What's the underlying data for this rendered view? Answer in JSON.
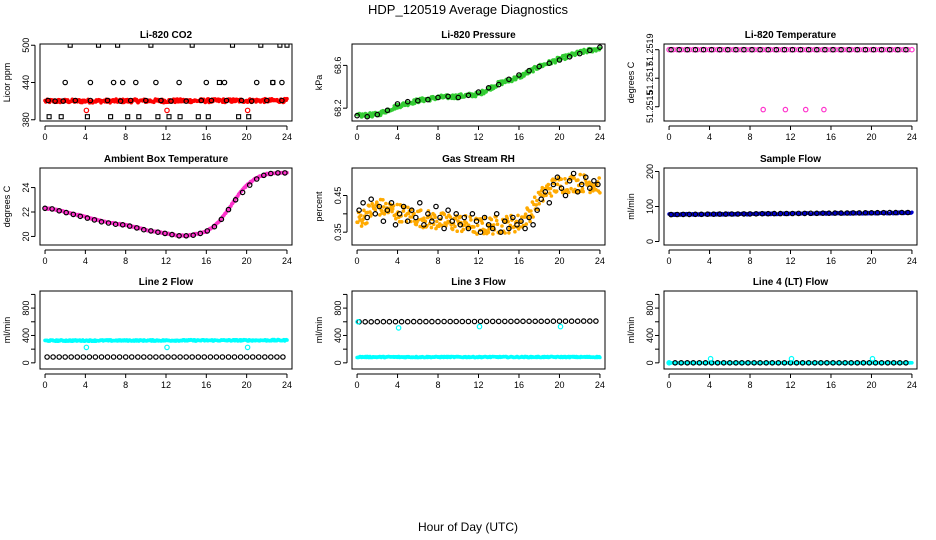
{
  "figure": {
    "title": "HDP_120519  Average Diagnostics",
    "xlabel": "Hour of Day (UTC)"
  },
  "chart_data": [
    {
      "type": "scatter",
      "title": "Li-820 CO2",
      "ylabel": "Licor ppm",
      "xlim": [
        -0.5,
        24.5
      ],
      "ylim": [
        378,
        502
      ],
      "xticks": [
        0,
        4,
        8,
        12,
        16,
        20,
        24
      ],
      "yticks": [
        380,
        440,
        500
      ],
      "series": [
        {
          "color": "#ff0000",
          "marker": "dense",
          "x_range": [
            0,
            24
          ],
          "y_start": 410,
          "y_end": 411,
          "noise": 3
        },
        {
          "color": "#000000",
          "marker": "open-circle",
          "x": [
            0.3,
            1,
            1.8,
            3,
            4.5,
            6.2,
            7.5,
            8.5,
            10,
            11.5,
            12.5,
            14,
            15.5,
            16.5,
            18,
            19.5,
            20.5,
            22,
            23.5
          ],
          "y": [
            411,
            410,
            410,
            411,
            411,
            411,
            410,
            411,
            411,
            411,
            410,
            410,
            411,
            411,
            411,
            411,
            410,
            411,
            411
          ]
        },
        {
          "color": "#000000",
          "marker": "open-square",
          "x": [
            0.4,
            1.6,
            2.5,
            4.2,
            5.3,
            6.5,
            7.2,
            8.2,
            9.3,
            10.5,
            11.2,
            12.3,
            13.4,
            14.6,
            15.2,
            16.2,
            17.3,
            18.6,
            19.2,
            20.2,
            21.4,
            22.6,
            23.3,
            24
          ],
          "y": [
            385,
            385,
            500,
            385,
            500,
            385,
            500,
            385,
            385,
            500,
            385,
            385,
            385,
            500,
            385,
            385,
            440,
            500,
            385,
            385,
            500,
            440,
            500,
            500
          ]
        },
        {
          "color": "#000000",
          "marker": "open-circle",
          "x": [
            2,
            4.5,
            6.8,
            7.7,
            9,
            11,
            13.3,
            16,
            17.8,
            21,
            22.6,
            23.5
          ],
          "y": [
            440,
            440,
            440,
            440,
            440,
            440,
            440,
            440,
            440,
            440,
            440,
            440
          ]
        },
        {
          "color": "#ff0000",
          "marker": "open-circle",
          "x": [
            4.1,
            12.1,
            20.1
          ],
          "y": [
            395,
            395,
            395
          ]
        }
      ]
    },
    {
      "type": "scatter",
      "title": "Li-820 Pressure",
      "ylabel": "kPa",
      "xlim": [
        -0.5,
        24.5
      ],
      "ylim": [
        68.08,
        68.8
      ],
      "xticks": [
        0,
        4,
        8,
        12,
        16,
        20,
        24
      ],
      "yticks": [
        68.2,
        68.6
      ],
      "series": [
        {
          "color": "#33cc33",
          "marker": "dense",
          "x": [
            0,
            2,
            4,
            6,
            8,
            10,
            12,
            14,
            16,
            18,
            20,
            22,
            24
          ],
          "y": [
            68.13,
            68.14,
            68.22,
            68.27,
            68.3,
            68.31,
            68.33,
            68.43,
            68.49,
            68.59,
            68.66,
            68.72,
            68.76
          ],
          "noise": 0.02
        },
        {
          "color": "#000000",
          "marker": "open-circle",
          "x": [
            0,
            1,
            2,
            3,
            4,
            5,
            6,
            7,
            8,
            9,
            10,
            11,
            12,
            13,
            14,
            15,
            16,
            17,
            18,
            19,
            20,
            21,
            22,
            23,
            24
          ],
          "y": [
            68.13,
            68.12,
            68.14,
            68.18,
            68.24,
            68.26,
            68.27,
            68.28,
            68.3,
            68.31,
            68.3,
            68.32,
            68.35,
            68.39,
            68.42,
            68.47,
            68.51,
            68.55,
            68.59,
            68.62,
            68.65,
            68.68,
            68.71,
            68.74,
            68.77
          ]
        }
      ]
    },
    {
      "type": "scatter",
      "title": "Li-820 Temperature",
      "ylabel": "degrees C",
      "xlim": [
        -0.5,
        24.5
      ],
      "ylim": [
        51.2514,
        51.25194
      ],
      "xticks": [
        0,
        4,
        8,
        12,
        16,
        20,
        24
      ],
      "yticks": [
        51.2515,
        51.2517,
        51.2519
      ],
      "ytick_labels": [
        "51.2515",
        "51.2517",
        "51.2519"
      ],
      "series": [
        {
          "color": "#ff33cc",
          "marker": "open-circle",
          "x_range": [
            0,
            24
          ],
          "step": 0.4,
          "y": 51.2519
        },
        {
          "color": "#000000",
          "marker": "open-circle",
          "x_range": [
            0.2,
            23.8
          ],
          "step": 0.8,
          "y": 51.2519
        },
        {
          "color": "#ff33cc",
          "marker": "open-circle",
          "x": [
            9.3,
            11.5,
            13.5,
            15.3
          ],
          "y": [
            51.25148,
            51.25148,
            51.25148,
            51.25148
          ]
        }
      ]
    },
    {
      "type": "scatter",
      "title": "Ambient Box Temperature",
      "ylabel": "degrees C",
      "xlim": [
        -0.5,
        24.5
      ],
      "ylim": [
        19.3,
        25.6
      ],
      "xticks": [
        0,
        4,
        8,
        12,
        16,
        20,
        24
      ],
      "yticks": [
        20,
        22,
        24
      ],
      "series": [
        {
          "color": "#ff33cc",
          "marker": "dense",
          "x": [
            0,
            1,
            2,
            3,
            4,
            5,
            6,
            7,
            8,
            9,
            10,
            11,
            12,
            13,
            14,
            15,
            16,
            17,
            18,
            19,
            20,
            21,
            22,
            23,
            24
          ],
          "y": [
            22.3,
            22.2,
            22.0,
            21.8,
            21.6,
            21.4,
            21.2,
            21.05,
            20.95,
            20.75,
            20.55,
            20.4,
            20.25,
            20.1,
            20.05,
            20.2,
            20.4,
            21.0,
            22.0,
            23.2,
            24.2,
            24.8,
            25.1,
            25.2,
            25.2
          ],
          "noise": 0.05
        },
        {
          "color": "#000000",
          "marker": "open-circle",
          "x": [
            0,
            0.7,
            1.4,
            2.1,
            2.8,
            3.5,
            4.2,
            4.9,
            5.6,
            6.3,
            7.0,
            7.7,
            8.4,
            9.1,
            9.8,
            10.5,
            11.2,
            11.9,
            12.6,
            13.3,
            14.0,
            14.7,
            15.4,
            16.1,
            16.8,
            17.5,
            18.2,
            18.9,
            19.6,
            20.3,
            21.0,
            21.7,
            22.4,
            23.1,
            23.8
          ],
          "y": [
            22.3,
            22.25,
            22.1,
            21.95,
            21.8,
            21.65,
            21.5,
            21.35,
            21.2,
            21.1,
            21.0,
            20.95,
            20.85,
            20.7,
            20.55,
            20.45,
            20.35,
            20.25,
            20.15,
            20.05,
            20.05,
            20.1,
            20.25,
            20.45,
            20.8,
            21.4,
            22.2,
            23.0,
            23.6,
            24.2,
            24.7,
            25.0,
            25.15,
            25.2,
            25.2
          ]
        }
      ]
    },
    {
      "type": "scatter",
      "title": "Gas Stream RH",
      "ylabel": "percent",
      "xlim": [
        -0.5,
        24.5
      ],
      "ylim": [
        0.315,
        0.525
      ],
      "xticks": [
        0,
        4,
        8,
        12,
        16,
        20,
        24
      ],
      "yticks": [
        0.35,
        0.4,
        0.45
      ],
      "ytick_labels": [
        "0.35",
        "",
        "0.45"
      ],
      "series": [
        {
          "color": "#ffaa00",
          "marker": "dense",
          "x": [
            0,
            2,
            4,
            6,
            8,
            10,
            12,
            14,
            16,
            17,
            18,
            19,
            20,
            22,
            24
          ],
          "y": [
            0.38,
            0.42,
            0.405,
            0.39,
            0.38,
            0.375,
            0.365,
            0.37,
            0.375,
            0.4,
            0.44,
            0.47,
            0.48,
            0.485,
            0.48
          ],
          "noise": 0.025
        },
        {
          "color": "#000000",
          "marker": "open-circle",
          "x": [
            0.2,
            0.6,
            1,
            1.4,
            1.8,
            2.2,
            2.6,
            3,
            3.4,
            3.8,
            4.2,
            4.6,
            5,
            5.4,
            5.8,
            6.2,
            6.6,
            7,
            7.4,
            7.8,
            8.2,
            8.6,
            9,
            9.4,
            9.8,
            10.2,
            10.6,
            11,
            11.4,
            11.8,
            12.2,
            12.6,
            13,
            13.4,
            13.8,
            14.2,
            14.6,
            15,
            15.4,
            15.8,
            16.2,
            16.6,
            17,
            17.4,
            17.8,
            18.2,
            18.6,
            19,
            19.4,
            19.8,
            20.2,
            20.6,
            21,
            21.4,
            21.8,
            22.2,
            22.6,
            23,
            23.4,
            23.8
          ],
          "y": [
            0.41,
            0.43,
            0.39,
            0.44,
            0.4,
            0.42,
            0.38,
            0.41,
            0.43,
            0.37,
            0.4,
            0.42,
            0.38,
            0.41,
            0.39,
            0.43,
            0.37,
            0.4,
            0.38,
            0.42,
            0.39,
            0.36,
            0.41,
            0.38,
            0.4,
            0.37,
            0.39,
            0.36,
            0.4,
            0.38,
            0.35,
            0.39,
            0.37,
            0.36,
            0.4,
            0.35,
            0.38,
            0.36,
            0.39,
            0.37,
            0.38,
            0.36,
            0.39,
            0.37,
            0.41,
            0.44,
            0.46,
            0.43,
            0.48,
            0.5,
            0.47,
            0.45,
            0.49,
            0.51,
            0.46,
            0.48,
            0.5,
            0.47,
            0.49,
            0.48
          ]
        }
      ]
    },
    {
      "type": "scatter",
      "title": "Sample Flow",
      "ylabel": "ml/min",
      "xlim": [
        -0.5,
        24.5
      ],
      "ylim": [
        -10,
        210
      ],
      "xticks": [
        0,
        4,
        8,
        12,
        16,
        20,
        24
      ],
      "yticks": [
        0,
        100,
        200
      ],
      "series": [
        {
          "color": "#0000cc",
          "marker": "dense",
          "x_range": [
            0,
            24
          ],
          "y_start": 77,
          "y_end": 82,
          "noise": 2
        },
        {
          "color": "#000000",
          "marker": "open-circle",
          "x_range": [
            0.2,
            23.8
          ],
          "step": 0.6,
          "y_start": 77,
          "y_end": 83
        }
      ]
    },
    {
      "type": "scatter",
      "title": "Line 2 Flow",
      "ylabel": "ml/min",
      "xlim": [
        -0.5,
        24.5
      ],
      "ylim": [
        -90,
        1050
      ],
      "xticks": [
        0,
        4,
        8,
        12,
        16,
        20,
        24
      ],
      "yticks": [
        0,
        200,
        400,
        600,
        800,
        1000
      ],
      "ytick_labels": [
        "0",
        "",
        "400",
        "",
        "800",
        ""
      ],
      "series": [
        {
          "color": "#00ffff",
          "marker": "dense",
          "x_range": [
            0,
            24
          ],
          "y_start": 325,
          "y_end": 330,
          "noise": 10
        },
        {
          "color": "#000000",
          "marker": "open-circle",
          "x_range": [
            0.2,
            23.8
          ],
          "step": 0.6,
          "y_start": 85,
          "y_end": 85
        },
        {
          "color": "#00ffff",
          "marker": "open-circle",
          "x": [
            4.1,
            12.1,
            20.1
          ],
          "y": [
            225,
            225,
            225
          ]
        }
      ]
    },
    {
      "type": "scatter",
      "title": "Line 3 Flow",
      "ylabel": "ml/min",
      "xlim": [
        -0.5,
        24.5
      ],
      "ylim": [
        -90,
        1050
      ],
      "xticks": [
        0,
        4,
        8,
        12,
        16,
        20,
        24
      ],
      "yticks": [
        0,
        200,
        400,
        600,
        800,
        1000
      ],
      "ytick_labels": [
        "0",
        "",
        "400",
        "",
        "800",
        ""
      ],
      "series": [
        {
          "color": "#00ffff",
          "marker": "dense",
          "x_range": [
            0,
            24
          ],
          "y_start": 85,
          "y_end": 85,
          "noise": 8
        },
        {
          "color": "#000000",
          "marker": "open-circle",
          "x_range": [
            0.2,
            23.8
          ],
          "step": 0.6,
          "y_start": 600,
          "y_end": 610
        },
        {
          "color": "#00ffff",
          "marker": "open-circle",
          "x": [
            0.1,
            4.1,
            12.1,
            20.1
          ],
          "y": [
            600,
            510,
            530,
            530
          ]
        }
      ]
    },
    {
      "type": "scatter",
      "title": "Line 4 (LT) Flow",
      "ylabel": "ml/min",
      "xlim": [
        -0.5,
        24.5
      ],
      "ylim": [
        -90,
        1050
      ],
      "xticks": [
        0,
        4,
        8,
        12,
        16,
        20,
        24
      ],
      "yticks": [
        0,
        200,
        400,
        600,
        800,
        1000
      ],
      "ytick_labels": [
        "0",
        "",
        "400",
        "",
        "800",
        ""
      ],
      "series": [
        {
          "color": "#00ffff",
          "marker": "dense",
          "x_range": [
            0,
            24
          ],
          "y_start": 0,
          "y_end": 0,
          "noise": 2
        },
        {
          "color": "#000000",
          "marker": "open-circle",
          "x_range": [
            0.6,
            23.8
          ],
          "step": 0.6,
          "y_start": 0,
          "y_end": 0
        },
        {
          "color": "#00ffff",
          "marker": "open-circle",
          "x": [
            0,
            4.1,
            12.1,
            20.1
          ],
          "y": [
            0,
            60,
            60,
            60
          ]
        }
      ]
    }
  ]
}
